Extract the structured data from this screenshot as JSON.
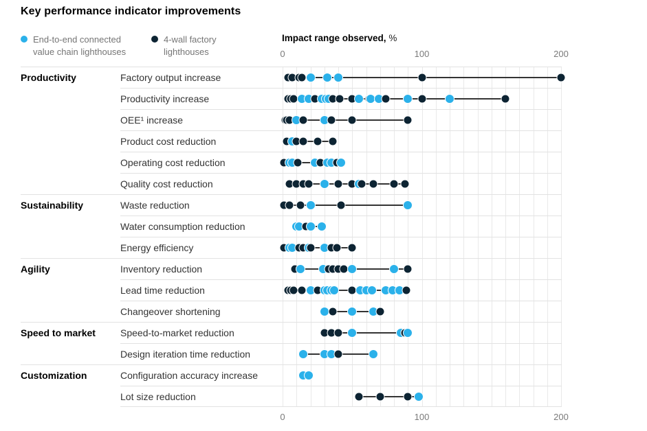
{
  "title": "Key performance indicator improvements",
  "colors": {
    "blue": "#2bb1ea",
    "dark": "#0d2433",
    "gridline": "#e9e9e9",
    "separator": "#e2e2e2",
    "range_line": "#333333"
  },
  "legend": [
    {
      "label": "End-to-end connected value chain lighthouses",
      "color": "#2bb1ea"
    },
    {
      "label": "4-wall factory lighthouses",
      "color": "#0d2433"
    }
  ],
  "axis": {
    "title": "Impact range observed,",
    "unit": "%",
    "min": 0,
    "max": 200,
    "minor_step": 10,
    "ticks": [
      "0",
      "100",
      "200"
    ],
    "tick_values": [
      0,
      100,
      200
    ]
  },
  "chart_data": {
    "type": "scatter",
    "title": "Key performance indicator improvements",
    "xlabel": "Impact range observed, %",
    "xlim": [
      0,
      200
    ],
    "grid": "vertical-minor-every-10",
    "legend_position": "top-left",
    "series_names": [
      "End-to-end connected value chain lighthouses",
      "4-wall factory lighthouses"
    ],
    "groups": [
      {
        "name": "Productivity",
        "rows": [
          {
            "label": "Factory output increase",
            "end_to_end": [
              20,
              32,
              40
            ],
            "four_wall": [
              4,
              7,
              12,
              14,
              100,
              200
            ]
          },
          {
            "label": "Productivity increase",
            "end_to_end": [
              14,
              19,
              28,
              31,
              33,
              55,
              63,
              69,
              90,
              120
            ],
            "four_wall": [
              4,
              6,
              8,
              23,
              36,
              41,
              50,
              62,
              74,
              100,
              160
            ]
          },
          {
            "label": "OEE¹ increase",
            "end_to_end": [
              10,
              30
            ],
            "four_wall": [
              2,
              3,
              5,
              15,
              35,
              50,
              90
            ]
          },
          {
            "label": "Product cost reduction",
            "end_to_end": [
              7
            ],
            "four_wall": [
              3,
              10,
              15,
              25,
              36
            ]
          },
          {
            "label": "Operating cost reduction",
            "end_to_end": [
              5,
              7,
              23,
              32,
              35,
              42
            ],
            "four_wall": [
              1,
              11,
              27,
              39
            ]
          },
          {
            "label": "Quality cost reduction",
            "end_to_end": [
              30,
              55
            ],
            "four_wall": [
              5,
              10,
              15,
              19,
              40,
              50,
              57,
              65,
              80,
              88
            ]
          }
        ]
      },
      {
        "name": "Sustainability",
        "rows": [
          {
            "label": "Waste reduction",
            "end_to_end": [
              20,
              90
            ],
            "four_wall": [
              1,
              5,
              13,
              42
            ]
          },
          {
            "label": "Water consumption reduction",
            "end_to_end": [
              10,
              12,
              20,
              28
            ],
            "four_wall": [
              17
            ]
          },
          {
            "label": "Energy efficiency",
            "end_to_end": [
              5,
              7,
              19,
              30
            ],
            "four_wall": [
              1,
              12,
              15,
              20,
              35,
              39,
              50
            ]
          }
        ]
      },
      {
        "name": "Agility",
        "rows": [
          {
            "label": "Inventory reduction",
            "end_to_end": [
              13,
              29,
              50,
              80
            ],
            "four_wall": [
              9,
              33,
              36,
              40,
              44,
              90
            ]
          },
          {
            "label": "Lead time reduction",
            "end_to_end": [
              20,
              30,
              32,
              35,
              37,
              56,
              60,
              64,
              74,
              79,
              84
            ],
            "four_wall": [
              4,
              6,
              8,
              14,
              25,
              50,
              89
            ]
          },
          {
            "label": "Changeover shortening",
            "end_to_end": [
              30,
              50,
              65
            ],
            "four_wall": [
              36,
              70
            ]
          }
        ]
      },
      {
        "name": "Speed to market",
        "rows": [
          {
            "label": "Speed-to-market reduction",
            "end_to_end": [
              50,
              85,
              90
            ],
            "four_wall": [
              30,
              35,
              40,
              88
            ]
          },
          {
            "label": "Design iteration time reduction",
            "end_to_end": [
              15,
              30,
              35,
              65
            ],
            "four_wall": [
              40
            ]
          }
        ]
      },
      {
        "name": "Customization",
        "rows": [
          {
            "label": "Configuration accuracy increase",
            "end_to_end": [
              15,
              19
            ],
            "four_wall": []
          },
          {
            "label": "Lot size reduction",
            "end_to_end": [
              98
            ],
            "four_wall": [
              55,
              70,
              90
            ]
          }
        ]
      }
    ]
  }
}
